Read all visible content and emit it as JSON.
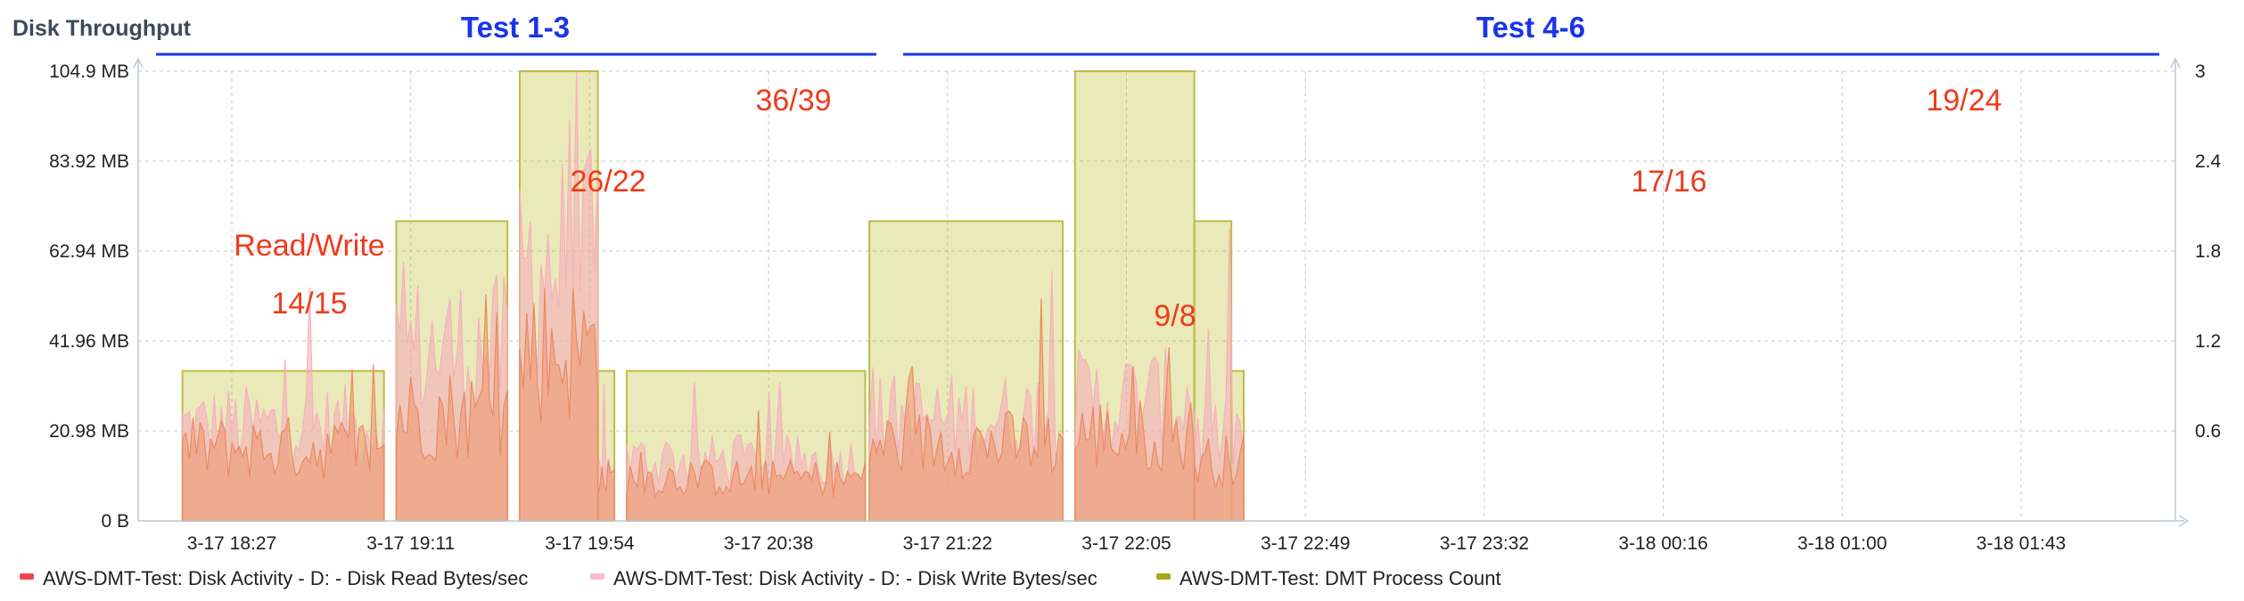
{
  "chart_data": {
    "type": "area",
    "title": "Disk Throughput",
    "groups": [
      {
        "label": "Test 1-3"
      },
      {
        "label": "Test 4-6"
      }
    ],
    "x_ticks": [
      "3-17 18:27",
      "3-17 19:11",
      "3-17 19:54",
      "3-17 20:38",
      "3-17 21:22",
      "3-17 22:05",
      "3-17 22:49",
      "3-17 23:32",
      "3-18 00:16",
      "3-18 01:00",
      "3-18 01:43"
    ],
    "y_left": {
      "ticks": [
        "0 B",
        "20.98 MB",
        "41.96 MB",
        "62.94 MB",
        "83.92 MB",
        "104.9 MB"
      ],
      "range": [
        0,
        104.9
      ],
      "unit": "MB"
    },
    "y_right": {
      "ticks": [
        "0.6",
        "1.2",
        "1.8",
        "2.4",
        "3"
      ],
      "range": [
        0,
        3
      ]
    },
    "annotations": [
      "Read/Write",
      "14/15",
      "26/22",
      "36/39",
      "9/8",
      "17/16",
      "19/24"
    ],
    "legend": [
      {
        "label": "AWS-DMT-Test: Disk Activity - D: - Disk Read Bytes/sec",
        "color": "#f0454f"
      },
      {
        "label": "AWS-DMT-Test: Disk Activity - D: - Disk Write Bytes/sec",
        "color": "#f6bec8"
      },
      {
        "label": "AWS-DMT-Test: DMT Process Count",
        "color": "#a9a81a"
      }
    ],
    "series": [
      {
        "name": "AWS-DMT-Test: DMT Process Count",
        "axis": "right",
        "segments": [
          {
            "start": "3-17 18:15",
            "end": "3-17 19:04",
            "value": 1
          },
          {
            "start": "3-17 19:07",
            "end": "3-17 19:34",
            "value": 2
          },
          {
            "start": "3-17 19:37",
            "end": "3-17 19:56",
            "value": 3
          },
          {
            "start": "3-17 19:56",
            "end": "3-17 20:00",
            "value": 1
          },
          {
            "start": "3-17 20:03",
            "end": "3-17 21:01",
            "value": 1
          },
          {
            "start": "3-17 21:02",
            "end": "3-17 21:49",
            "value": 2
          },
          {
            "start": "3-17 21:52",
            "end": "3-17 22:21",
            "value": 3
          },
          {
            "start": "3-17 22:21",
            "end": "3-17 22:30",
            "value": 2
          },
          {
            "start": "3-17 22:30",
            "end": "3-17 22:33",
            "value": 1
          }
        ]
      },
      {
        "name": "AWS-DMT-Test: Disk Activity - D: - Disk Read Bytes/sec",
        "axis": "left",
        "typical_mb": [
          {
            "start": "3-17 18:15",
            "end": "3-17 19:04",
            "value": 17
          },
          {
            "start": "3-17 19:07",
            "end": "3-17 19:34",
            "value": 25
          },
          {
            "start": "3-17 19:37",
            "end": "3-17 19:56",
            "value": 40
          },
          {
            "start": "3-17 19:56",
            "end": "3-17 20:00",
            "value": 10
          },
          {
            "start": "3-17 20:03",
            "end": "3-17 21:01",
            "value": 10
          },
          {
            "start": "3-17 21:02",
            "end": "3-17 21:49",
            "value": 18
          },
          {
            "start": "3-17 21:52",
            "end": "3-17 22:21",
            "value": 20
          },
          {
            "start": "3-17 22:21",
            "end": "3-17 22:33",
            "value": 14
          }
        ]
      },
      {
        "name": "AWS-DMT-Test: Disk Activity - D: - Disk Write Bytes/sec",
        "axis": "left",
        "typical_mb": [
          {
            "start": "3-17 18:15",
            "end": "3-17 19:04",
            "value": 22
          },
          {
            "start": "3-17 19:07",
            "end": "3-17 19:34",
            "value": 40
          },
          {
            "start": "3-17 19:37",
            "end": "3-17 19:56",
            "value": 60
          },
          {
            "start": "3-17 19:56",
            "end": "3-17 20:00",
            "value": 12
          },
          {
            "start": "3-17 20:03",
            "end": "3-17 21:01",
            "value": 14
          },
          {
            "start": "3-17 21:02",
            "end": "3-17 21:49",
            "value": 24
          },
          {
            "start": "3-17 21:52",
            "end": "3-17 22:21",
            "value": 28
          },
          {
            "start": "3-17 22:21",
            "end": "3-17 22:33",
            "value": 20
          }
        ]
      }
    ]
  }
}
